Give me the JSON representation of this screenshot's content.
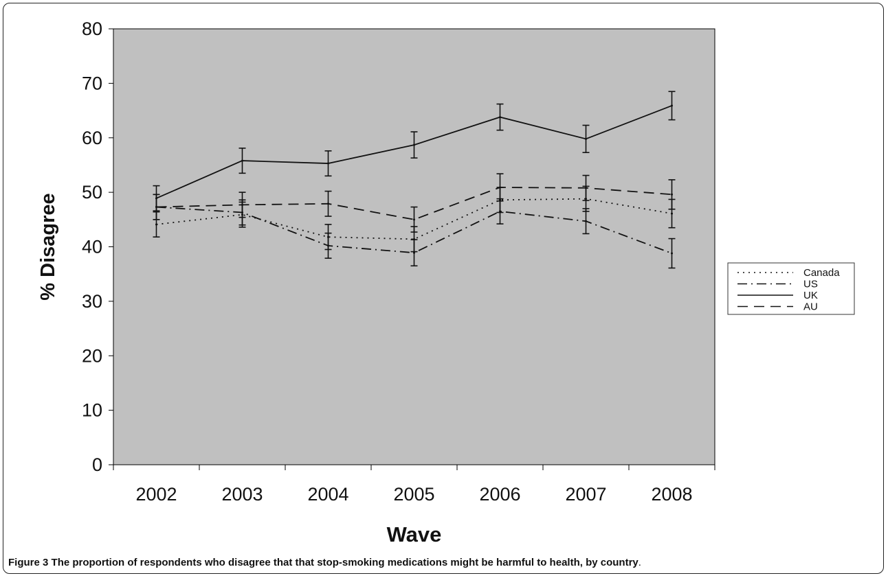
{
  "chart_data": {
    "type": "line",
    "title": "",
    "xlabel": "Wave",
    "ylabel": "% Disagree",
    "categories": [
      "2002",
      "2003",
      "2004",
      "2005",
      "2006",
      "2007",
      "2008"
    ],
    "ylim": [
      0,
      80
    ],
    "yticks": [
      0,
      10,
      20,
      30,
      40,
      50,
      60,
      70,
      80
    ],
    "grid": false,
    "plot_background": "#c0c0c0",
    "legend_placement": "right",
    "series": [
      {
        "name": "Canada",
        "dash": "dotted",
        "values": [
          44.1,
          45.9,
          41.8,
          41.4,
          48.6,
          48.8,
          46.1
        ],
        "err": [
          2.3,
          2.3,
          2.3,
          2.3,
          2.3,
          2.3,
          2.6
        ]
      },
      {
        "name": "US",
        "dash": "dash-dot",
        "values": [
          47.3,
          46.3,
          40.2,
          38.9,
          46.5,
          44.7,
          38.8
        ],
        "err": [
          2.3,
          2.3,
          2.3,
          2.4,
          2.3,
          2.3,
          2.7
        ]
      },
      {
        "name": "UK",
        "dash": "solid",
        "values": [
          48.9,
          55.8,
          55.3,
          58.7,
          63.8,
          59.8,
          65.9
        ],
        "err": [
          2.3,
          2.3,
          2.3,
          2.4,
          2.4,
          2.5,
          2.6
        ]
      },
      {
        "name": "AU",
        "dash": "dashed",
        "values": [
          47.3,
          47.7,
          47.9,
          45.0,
          50.9,
          50.8,
          49.6
        ],
        "err": [
          2.3,
          2.3,
          2.3,
          2.3,
          2.5,
          2.3,
          2.7
        ]
      }
    ]
  },
  "caption": {
    "label": "Figure 3",
    "text": " The proportion of respondents who disagree that that stop-smoking medications might be harmful to health, by country",
    "end": "."
  }
}
